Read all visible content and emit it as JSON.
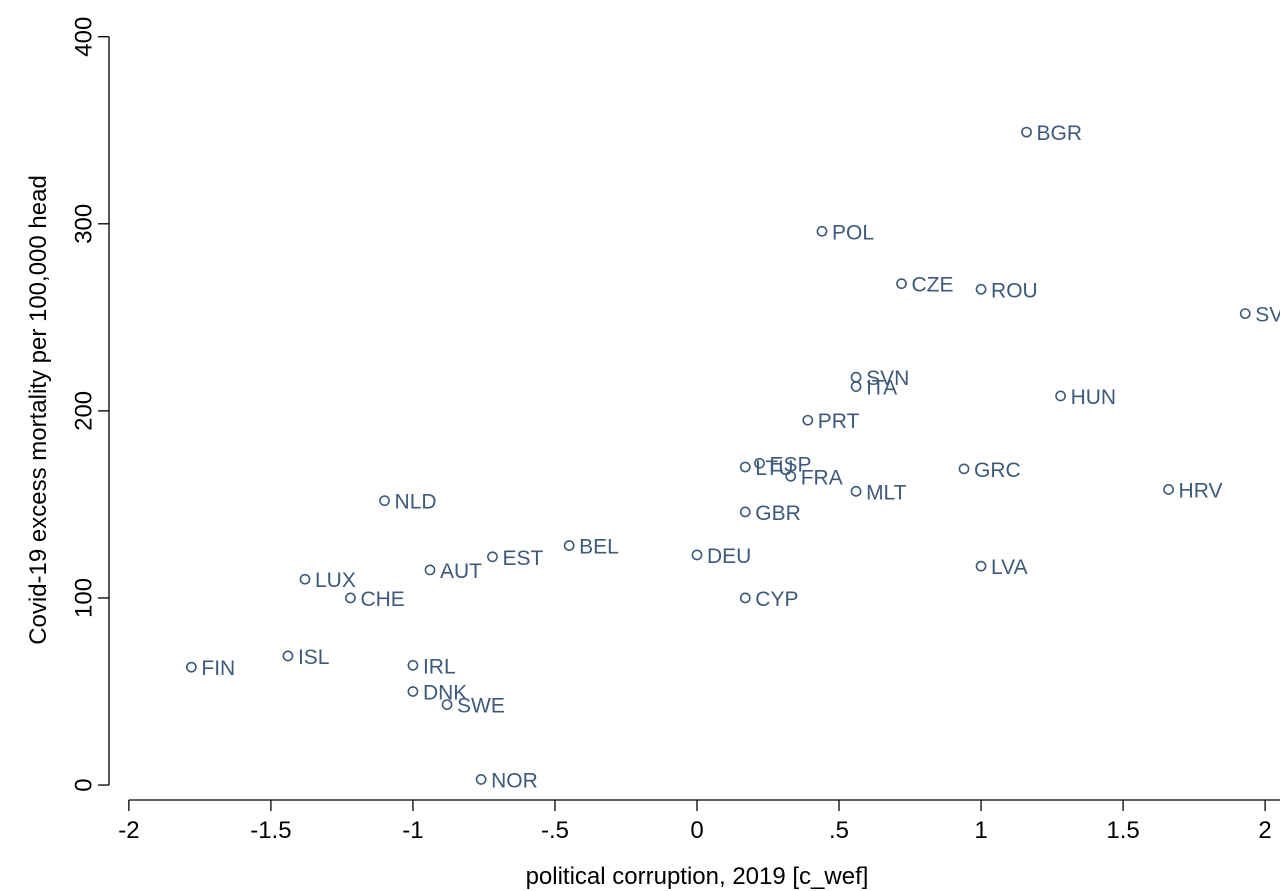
{
  "chart_data": {
    "type": "scatter",
    "xlabel": "political corruption, 2019 [c_wef]",
    "ylabel": "Covid-19 excess mortality per 100,000 head",
    "xlim": [
      -2.07,
      2.07
    ],
    "ylim": [
      -8,
      410
    ],
    "x_ticks": [
      -2,
      -1.5,
      -1,
      -0.5,
      0,
      0.5,
      1,
      1.5,
      2
    ],
    "x_tick_labels": [
      "-2",
      "-1.5",
      "-1",
      "-.5",
      "0",
      ".5",
      "1",
      "1.5",
      "2"
    ],
    "y_ticks": [
      0,
      100,
      200,
      300,
      400
    ],
    "y_tick_labels": [
      "0",
      "100",
      "200",
      "300",
      "400"
    ],
    "grid": false,
    "legend": "none",
    "marker": "hollow-circle",
    "color": "#3d5a7a",
    "points": [
      {
        "label": "BGR",
        "x": 1.16,
        "y": 349
      },
      {
        "label": "POL",
        "x": 0.44,
        "y": 296
      },
      {
        "label": "CZE",
        "x": 0.72,
        "y": 268
      },
      {
        "label": "ROU",
        "x": 1.0,
        "y": 265
      },
      {
        "label": "SVK",
        "x": 1.93,
        "y": 252
      },
      {
        "label": "SVN",
        "x": 0.56,
        "y": 218
      },
      {
        "label": "ITA",
        "x": 0.56,
        "y": 213
      },
      {
        "label": "HUN",
        "x": 1.28,
        "y": 208
      },
      {
        "label": "PRT",
        "x": 0.39,
        "y": 195
      },
      {
        "label": "ESP",
        "x": 0.22,
        "y": 172
      },
      {
        "label": "LTU",
        "x": 0.17,
        "y": 170
      },
      {
        "label": "FRA",
        "x": 0.33,
        "y": 165
      },
      {
        "label": "GRC",
        "x": 0.94,
        "y": 169
      },
      {
        "label": "MLT",
        "x": 0.56,
        "y": 157
      },
      {
        "label": "HRV",
        "x": 1.66,
        "y": 158
      },
      {
        "label": "NLD",
        "x": -1.1,
        "y": 152
      },
      {
        "label": "GBR",
        "x": 0.17,
        "y": 146
      },
      {
        "label": "BEL",
        "x": -0.45,
        "y": 128
      },
      {
        "label": "DEU",
        "x": 0.0,
        "y": 123
      },
      {
        "label": "EST",
        "x": -0.72,
        "y": 122
      },
      {
        "label": "AUT",
        "x": -0.94,
        "y": 115
      },
      {
        "label": "LVA",
        "x": 1.0,
        "y": 117
      },
      {
        "label": "LUX",
        "x": -1.38,
        "y": 110
      },
      {
        "label": "CHE",
        "x": -1.22,
        "y": 100
      },
      {
        "label": "CYP",
        "x": 0.17,
        "y": 100
      },
      {
        "label": "FIN",
        "x": -1.78,
        "y": 63
      },
      {
        "label": "ISL",
        "x": -1.44,
        "y": 69
      },
      {
        "label": "IRL",
        "x": -1.0,
        "y": 64
      },
      {
        "label": "DNK",
        "x": -1.0,
        "y": 50
      },
      {
        "label": "SWE",
        "x": -0.88,
        "y": 43
      },
      {
        "label": "NOR",
        "x": -0.76,
        "y": 3
      }
    ]
  }
}
